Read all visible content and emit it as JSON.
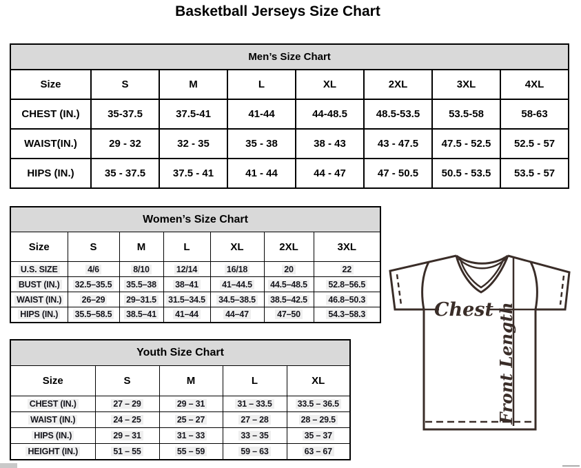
{
  "page_title": "Basketball Jerseys Size Chart",
  "mens": {
    "title": "Men’s Size Chart",
    "columns": [
      "Size",
      "S",
      "M",
      "L",
      "XL",
      "2XL",
      "3XL",
      "4XL"
    ],
    "rows": [
      {
        "label": "CHEST (IN.)",
        "values": [
          "35-37.5",
          "37.5-41",
          "41-44",
          "44-48.5",
          "48.5-53.5",
          "53.5-58",
          "58-63"
        ]
      },
      {
        "label": "WAIST(IN.)",
        "values": [
          "29 - 32",
          "32 - 35",
          "35 - 38",
          "38 - 43",
          "43 - 47.5",
          "47.5 - 52.5",
          "52.5 - 57"
        ]
      },
      {
        "label": "HIPS (IN.)",
        "values": [
          "35 - 37.5",
          "37.5 - 41",
          "41 - 44",
          "44 - 47",
          "47 - 50.5",
          "50.5 - 53.5",
          "53.5 - 57"
        ]
      }
    ]
  },
  "womens": {
    "title": "Women’s Size Chart",
    "columns": [
      "Size",
      "S",
      "M",
      "L",
      "XL",
      "2XL",
      "3XL"
    ],
    "rows": [
      {
        "label": "U.S. SIZE",
        "values": [
          "4/6",
          "8/10",
          "12/14",
          "16/18",
          "20",
          "22"
        ]
      },
      {
        "label": "BUST (IN.)",
        "values": [
          "32.5–35.5",
          "35.5–38",
          "38–41",
          "41–44.5",
          "44.5–48.5",
          "52.8–56.5"
        ]
      },
      {
        "label": "WAIST (IN.)",
        "values": [
          "26–29",
          "29–31.5",
          "31.5–34.5",
          "34.5–38.5",
          "38.5–42.5",
          "46.8–50.3"
        ]
      },
      {
        "label": "HIPS (IN.)",
        "values": [
          "35.5–58.5",
          "38.5–41",
          "41–44",
          "44–47",
          "47–50",
          "54.3–58.3"
        ]
      }
    ]
  },
  "youth": {
    "title": "Youth Size Chart",
    "columns": [
      "Size",
      "S",
      "M",
      "L",
      "XL"
    ],
    "rows": [
      {
        "label": "CHEST (IN.)",
        "values": [
          "27 – 29",
          "29 – 31",
          "31 – 33.5",
          "33.5 – 36.5"
        ]
      },
      {
        "label": "WAIST (IN.)",
        "values": [
          "24 – 25",
          "25 – 27",
          "27 – 28",
          "28 – 29.5"
        ]
      },
      {
        "label": "HIPS (IN.)",
        "values": [
          "29 – 31",
          "31 – 33",
          "33 – 35",
          "35 – 37"
        ]
      },
      {
        "label": "HEIGHT (IN.)",
        "values": [
          "51 – 55",
          "55 – 59",
          "59 – 63",
          "63 – 67"
        ]
      }
    ]
  },
  "diagram": {
    "chest_label": "Chest",
    "front_length_label": "Front Length"
  },
  "colors": {
    "section_header_bg": "#d9d9d9",
    "table_border": "#000000",
    "condensed_text": "#15151c",
    "cell_highlight": "#efefef",
    "diagram_stroke": "#3a2d28"
  }
}
